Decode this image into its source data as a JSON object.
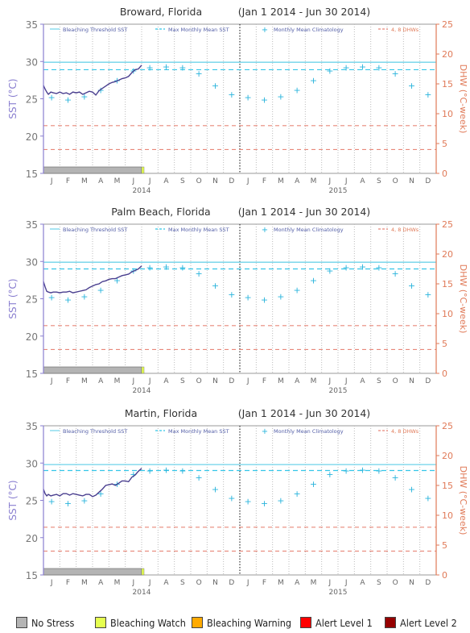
{
  "chart_data": [
    {
      "type": "line",
      "title": "Broward, Florida",
      "date_range": "(Jan 1 2014 - Jun 30 2014)",
      "ylabel_left": "SST (°C)",
      "ylabel_right": "DHW (°C-week)",
      "ylim_left": [
        15,
        35
      ],
      "ylim_right": [
        0,
        25
      ],
      "yticks_left": [
        15,
        20,
        25,
        30,
        35
      ],
      "yticks_right": [
        0,
        5,
        10,
        15,
        20,
        25
      ],
      "months": [
        "J",
        "F",
        "M",
        "A",
        "M",
        "J",
        "J",
        "A",
        "S",
        "O",
        "N",
        "D",
        "J",
        "F",
        "M",
        "A",
        "M",
        "J",
        "J",
        "A",
        "S",
        "O",
        "N",
        "D"
      ],
      "years": [
        {
          "label": "2014",
          "month_index": 6
        },
        {
          "label": "2015",
          "month_index": 18
        }
      ],
      "legend": [
        "Bleaching Threshold SST",
        "Max Monthly Mean SST",
        "Monthly Mean Climatology",
        "4, 8 DHWs"
      ],
      "bleaching_threshold_sst": 29.9,
      "max_monthly_mean_sst": 28.9,
      "dhw_levels": [
        4,
        8
      ],
      "climatology": [
        25.2,
        24.9,
        25.3,
        26.2,
        27.5,
        28.8,
        29.2,
        29.3,
        29.2,
        28.4,
        26.8,
        25.6,
        25.2,
        24.9,
        25.3,
        26.2,
        27.5,
        28.8,
        29.2,
        29.3,
        29.2,
        28.4,
        26.8,
        25.6
      ],
      "sst_series": {
        "x_months": [
          0.0,
          0.1,
          0.2,
          0.3,
          0.45,
          0.6,
          0.8,
          1.0,
          1.2,
          1.4,
          1.6,
          1.8,
          2.0,
          2.2,
          2.4,
          2.6,
          2.8,
          3.0,
          3.2,
          3.4,
          3.6,
          3.8,
          4.0,
          4.2,
          4.4,
          4.6,
          4.8,
          5.0,
          5.2,
          5.4,
          5.6,
          5.8,
          6.0
        ],
        "values": [
          26.8,
          26.3,
          25.9,
          25.6,
          25.9,
          25.8,
          25.7,
          25.9,
          25.7,
          25.8,
          25.6,
          25.9,
          25.8,
          25.9,
          25.6,
          25.8,
          26.0,
          25.9,
          25.5,
          26.1,
          26.4,
          26.7,
          27.0,
          27.2,
          27.3,
          27.5,
          27.7,
          27.8,
          28.0,
          28.5,
          28.9,
          29.0,
          29.5
        ]
      },
      "stress_level_until_month": 6,
      "stress_level": "No Stress"
    },
    {
      "type": "line",
      "title": "Palm Beach, Florida",
      "date_range": "(Jan 1 2014 - Jun 30 2014)",
      "ylabel_left": "SST (°C)",
      "ylabel_right": "DHW (°C-week)",
      "ylim_left": [
        15,
        35
      ],
      "ylim_right": [
        0,
        25
      ],
      "yticks_left": [
        15,
        20,
        25,
        30,
        35
      ],
      "yticks_right": [
        0,
        5,
        10,
        15,
        20,
        25
      ],
      "months": [
        "J",
        "F",
        "M",
        "A",
        "M",
        "J",
        "J",
        "A",
        "S",
        "O",
        "N",
        "D",
        "J",
        "F",
        "M",
        "A",
        "M",
        "J",
        "J",
        "A",
        "S",
        "O",
        "N",
        "D"
      ],
      "years": [
        {
          "label": "2014",
          "month_index": 6
        },
        {
          "label": "2015",
          "month_index": 18
        }
      ],
      "legend": [
        "Bleaching Threshold SST",
        "Max Monthly Mean SST",
        "Monthly Mean Climatology",
        "4, 8 DHWs"
      ],
      "bleaching_threshold_sst": 29.9,
      "max_monthly_mean_sst": 29.0,
      "dhw_levels": [
        4,
        8
      ],
      "climatology": [
        25.2,
        24.9,
        25.3,
        26.2,
        27.5,
        28.8,
        29.2,
        29.3,
        29.2,
        28.4,
        26.8,
        25.6,
        25.2,
        24.9,
        25.3,
        26.2,
        27.5,
        28.8,
        29.2,
        29.3,
        29.2,
        28.4,
        26.8,
        25.6
      ],
      "sst_series": {
        "x_months": [
          0.0,
          0.1,
          0.2,
          0.3,
          0.45,
          0.6,
          0.8,
          1.0,
          1.2,
          1.4,
          1.6,
          1.8,
          2.0,
          2.2,
          2.4,
          2.6,
          2.8,
          3.0,
          3.2,
          3.4,
          3.6,
          3.8,
          4.0,
          4.2,
          4.4,
          4.6,
          4.8,
          5.0,
          5.2,
          5.4,
          5.6,
          5.8,
          6.0
        ],
        "values": [
          27.3,
          26.6,
          26.0,
          25.9,
          25.8,
          25.9,
          25.9,
          25.8,
          25.9,
          25.9,
          26.0,
          25.8,
          25.9,
          26.0,
          26.1,
          26.2,
          26.5,
          26.7,
          26.9,
          27.0,
          27.3,
          27.4,
          27.6,
          27.7,
          27.7,
          27.9,
          28.1,
          28.2,
          28.3,
          28.6,
          28.8,
          29.0,
          29.4
        ]
      },
      "stress_level_until_month": 6,
      "stress_level": "No Stress"
    },
    {
      "type": "line",
      "title": "Martin, Florida",
      "date_range": "(Jan 1 2014 - Jun 30 2014)",
      "ylabel_left": "SST (°C)",
      "ylabel_right": "DHW (°C-week)",
      "ylim_left": [
        15,
        35
      ],
      "ylim_right": [
        0,
        25
      ],
      "yticks_left": [
        15,
        20,
        25,
        30,
        35
      ],
      "yticks_right": [
        0,
        5,
        10,
        15,
        20,
        25
      ],
      "months": [
        "J",
        "F",
        "M",
        "A",
        "M",
        "J",
        "J",
        "A",
        "S",
        "O",
        "N",
        "D",
        "J",
        "F",
        "M",
        "A",
        "M",
        "J",
        "J",
        "A",
        "S",
        "O",
        "N",
        "D"
      ],
      "years": [
        {
          "label": "2014",
          "month_index": 6
        },
        {
          "label": "2015",
          "month_index": 18
        }
      ],
      "legend": [
        "Bleaching Threshold SST",
        "Max Monthly Mean SST",
        "Monthly Mean Climatology",
        "4, 8 DHWs"
      ],
      "bleaching_threshold_sst": 29.8,
      "max_monthly_mean_sst": 29.0,
      "dhw_levels": [
        4,
        8
      ],
      "climatology": [
        24.9,
        24.6,
        25.0,
        25.9,
        27.2,
        28.5,
        29.0,
        29.1,
        29.0,
        28.1,
        26.5,
        25.3,
        24.9,
        24.6,
        25.0,
        25.9,
        27.2,
        28.5,
        29.0,
        29.1,
        29.0,
        28.1,
        26.5,
        25.3
      ],
      "sst_series": {
        "x_months": [
          0.0,
          0.1,
          0.2,
          0.3,
          0.45,
          0.6,
          0.8,
          1.0,
          1.2,
          1.4,
          1.6,
          1.8,
          2.0,
          2.2,
          2.4,
          2.6,
          2.8,
          3.0,
          3.2,
          3.4,
          3.6,
          3.8,
          4.0,
          4.2,
          4.4,
          4.6,
          4.8,
          5.0,
          5.2,
          5.4,
          5.6,
          5.8,
          6.0
        ],
        "values": [
          26.5,
          25.9,
          25.6,
          25.8,
          25.6,
          25.7,
          25.8,
          25.6,
          25.9,
          25.9,
          25.7,
          25.9,
          25.8,
          25.7,
          25.6,
          25.8,
          25.8,
          25.5,
          25.7,
          26.1,
          26.5,
          27.0,
          27.1,
          27.2,
          27.0,
          27.3,
          27.6,
          27.6,
          27.5,
          28.1,
          28.4,
          28.9,
          29.3
        ]
      },
      "stress_level_until_month": 6,
      "stress_level": "No Stress"
    }
  ],
  "legend_stress": [
    {
      "label": "No Stress",
      "color": "#b4b4b4"
    },
    {
      "label": "Bleaching Watch",
      "color": "#e6ff50"
    },
    {
      "label": "Bleaching Warning",
      "color": "#ffaa00"
    },
    {
      "label": "Alert Level 1",
      "color": "#ff0000"
    },
    {
      "label": "Alert Level 2",
      "color": "#960000"
    }
  ],
  "colors": {
    "sst": "#4a3f8f",
    "threshold": "#6fd3ea",
    "mmm": "#35c6e8",
    "climatology": "#2ab4dc",
    "dhw_lines": "#e8887a",
    "right_axis": "#e07a58",
    "left_axis": "#8a7fd0"
  }
}
